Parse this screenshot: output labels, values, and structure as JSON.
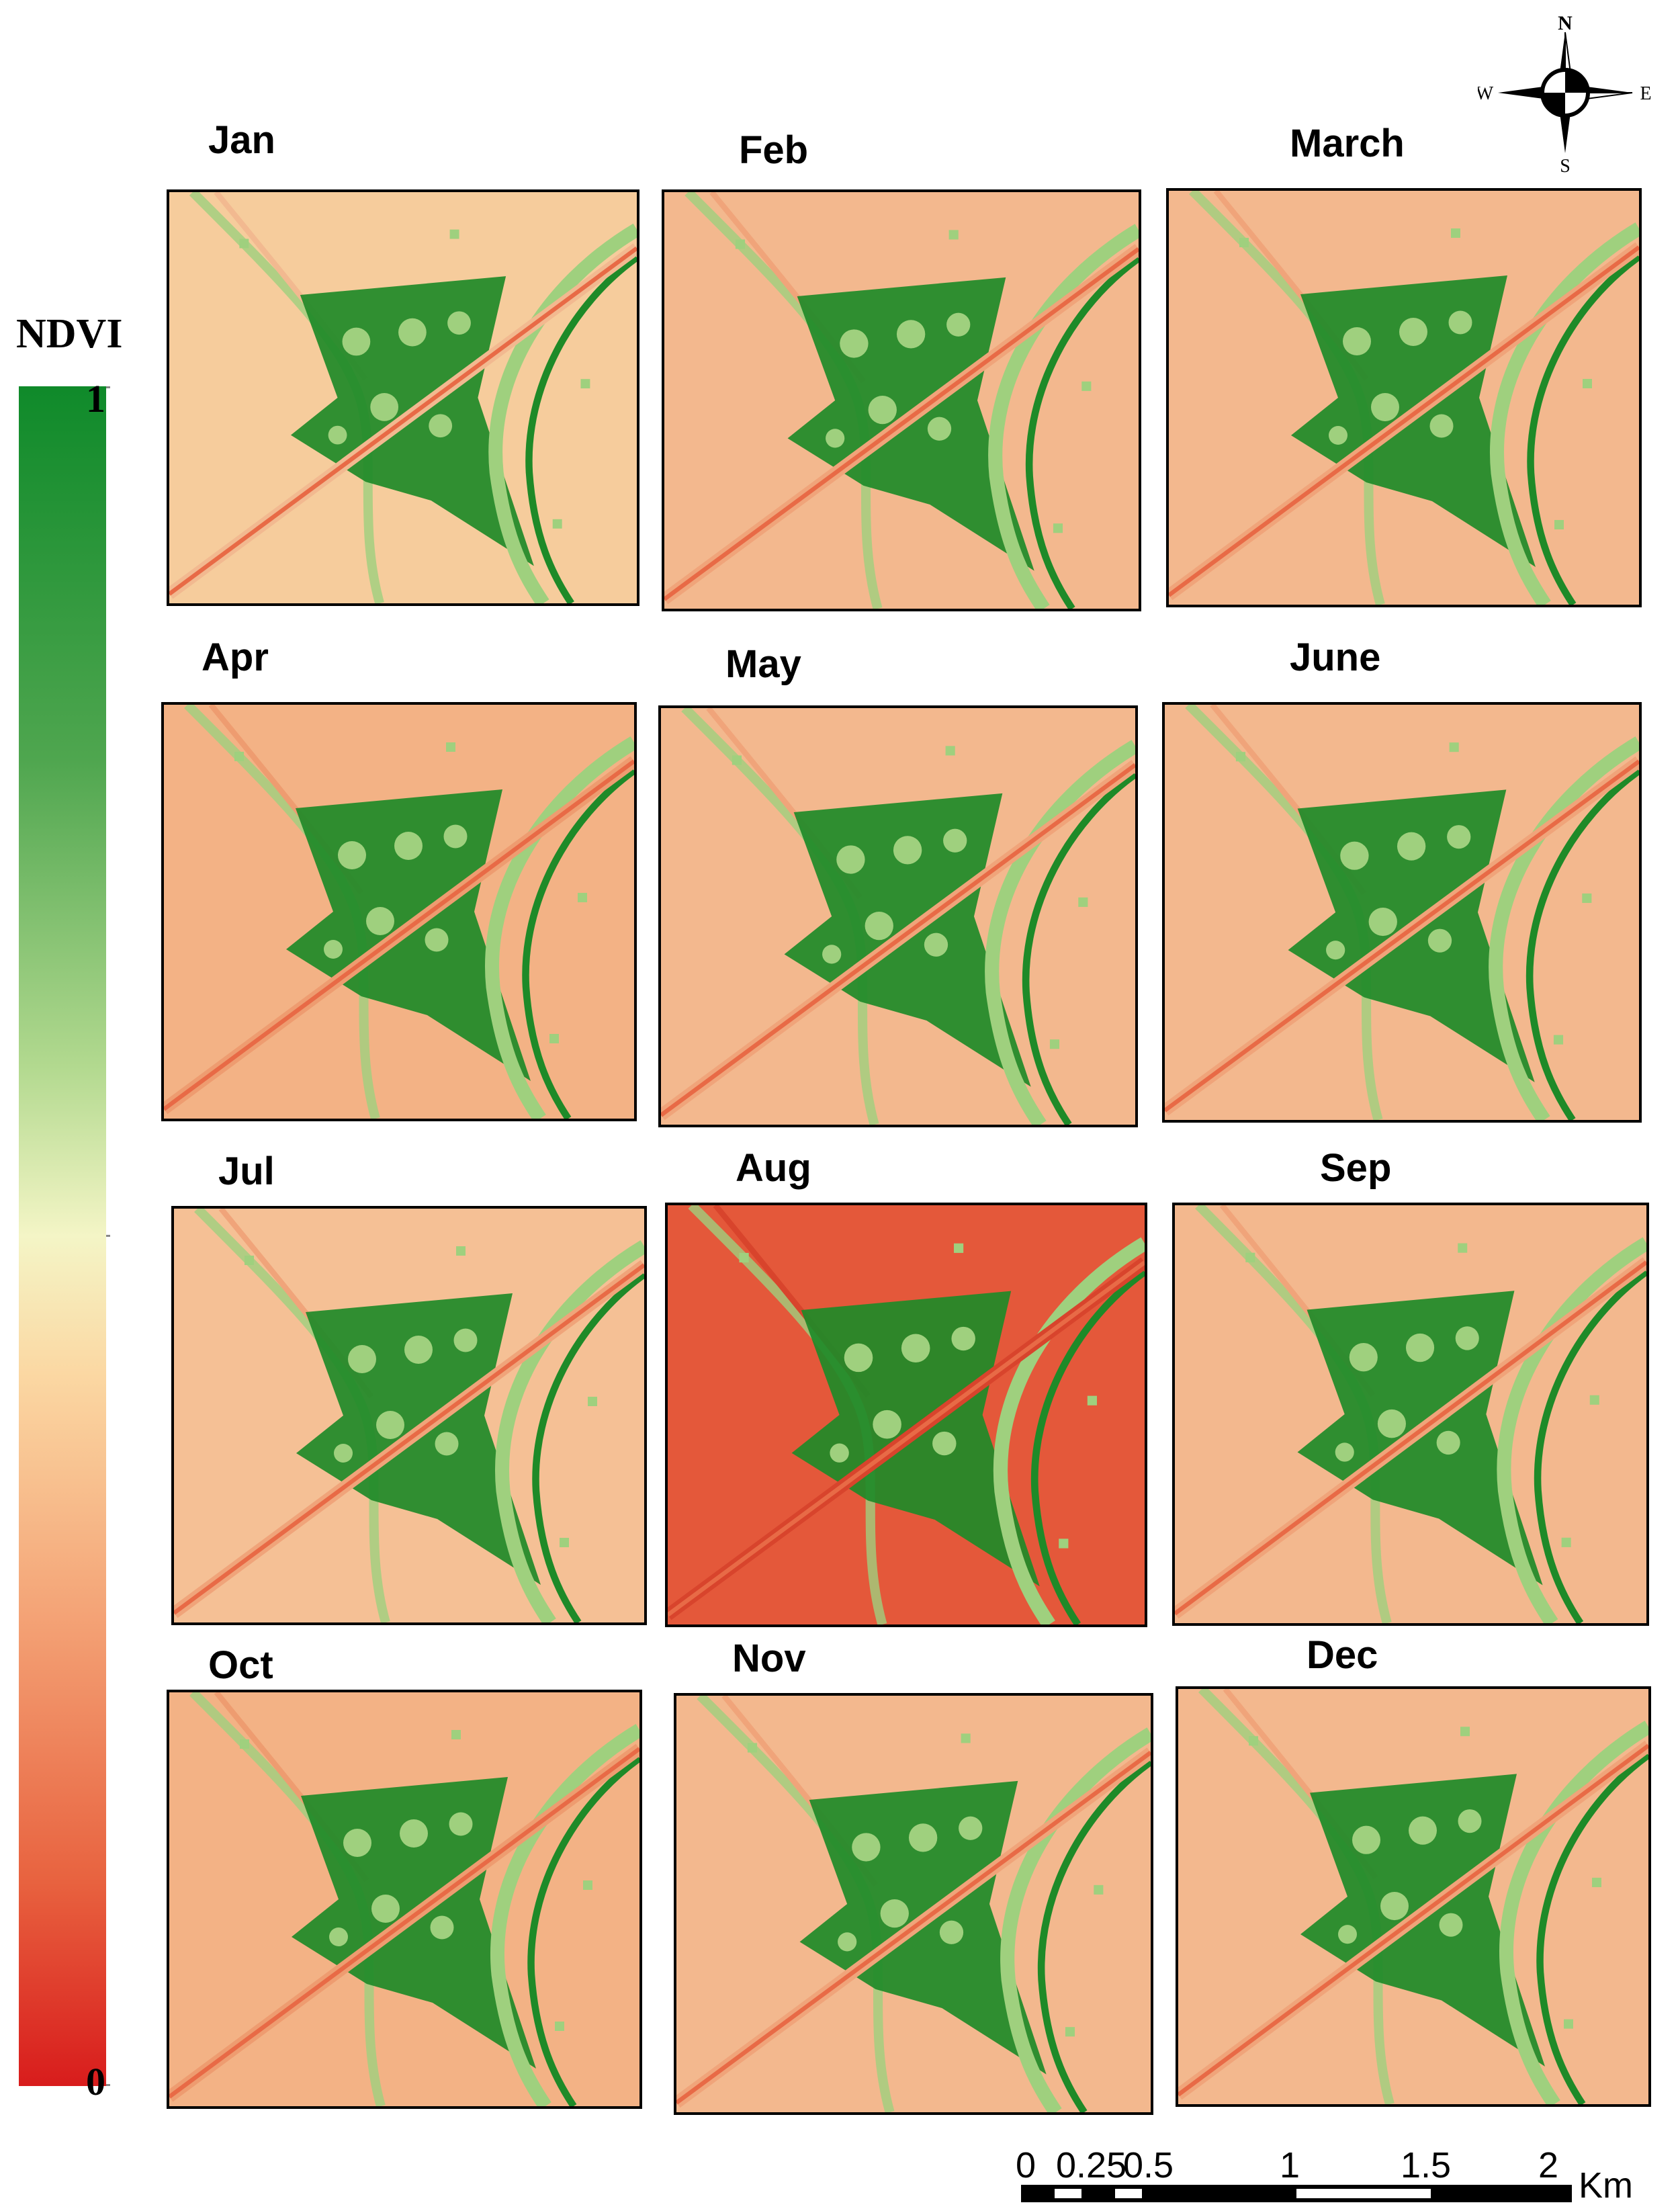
{
  "legend": {
    "title": "NDVI",
    "max_label": "1",
    "min_label": "0",
    "ramp": [
      "#0f8a2a",
      "#4fa64f",
      "#b2d98f",
      "#f4f5c6",
      "#fbd8a3",
      "#f4a477",
      "#e8623f",
      "#d81c1c"
    ]
  },
  "months": [
    {
      "label": "Jan",
      "bg": "#f6cc9c",
      "mid": "#f2b990"
    },
    {
      "label": "Feb",
      "bg": "#f3b88e",
      "mid": "#f0a47a"
    },
    {
      "label": "March",
      "bg": "#f3b88e",
      "mid": "#f0a47a"
    },
    {
      "label": "Apr",
      "bg": "#f3b285",
      "mid": "#ee9c70"
    },
    {
      "label": "May",
      "bg": "#f3b88e",
      "mid": "#f0a47a"
    },
    {
      "label": "June",
      "bg": "#f3b88e",
      "mid": "#f0a47a"
    },
    {
      "label": "Jul",
      "bg": "#f5c095",
      "mid": "#f0a47a"
    },
    {
      "label": "Aug",
      "bg": "#e4583a",
      "mid": "#d8442c"
    },
    {
      "label": "Sep",
      "bg": "#f3b88e",
      "mid": "#f0a47a"
    },
    {
      "label": "Oct",
      "bg": "#f3b285",
      "mid": "#ee9c70"
    },
    {
      "label": "Nov",
      "bg": "#f3b88e",
      "mid": "#f0a47a"
    },
    {
      "label": "Dec",
      "bg": "#f3b88e",
      "mid": "#f0a47a"
    }
  ],
  "compass": {
    "n": "N",
    "s": "S",
    "e": "E",
    "w": "W"
  },
  "scale_bar": {
    "labels": [
      "0",
      "0.25",
      "0.5",
      "1",
      "1.5",
      "2"
    ],
    "unit": "Km"
  }
}
